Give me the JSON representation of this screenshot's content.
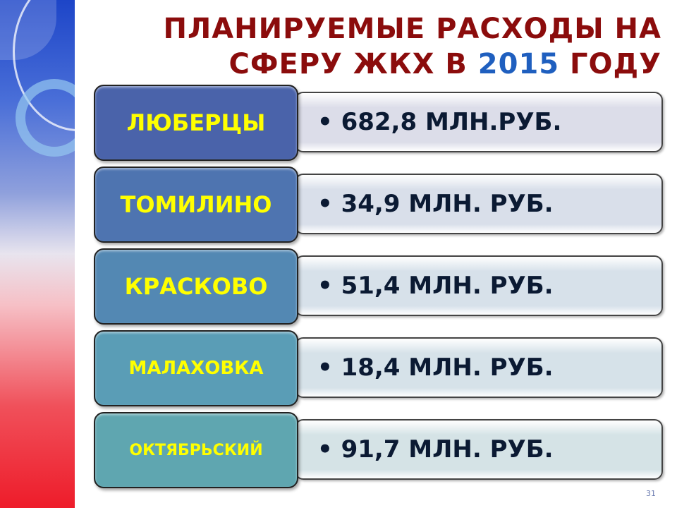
{
  "title": {
    "line1": "ПЛАНИРУЕМЫЕ РАСХОДЫ НА",
    "line2_prefix": "СФЕРУ ЖКХ В ",
    "year": "2015",
    "line2_suffix": " ГОДУ"
  },
  "rows": [
    {
      "label": "ЛЮБЕРЦЫ",
      "value": "• 682,8 МЛН.РУБ.",
      "label_color": "#4a63aa",
      "value_bg": "#dcdde9"
    },
    {
      "label": "ТОМИЛИНО",
      "value": "• 34,9 МЛН. РУБ.",
      "label_color": "#4e74b0",
      "value_bg": "#d9dfea"
    },
    {
      "label": "КРАСКОВО",
      "value": "• 51,4 МЛН. РУБ.",
      "label_color": "#5388b3",
      "value_bg": "#d7e1ea"
    },
    {
      "label": "МАЛАХОВКА",
      "value": "• 18,4 МЛН. РУБ.",
      "label_color": "#5a9db6",
      "value_bg": "#d6e2e9"
    },
    {
      "label": "ОКТЯБРЬСКИЙ",
      "value": "• 91,7 МЛН. РУБ.",
      "label_color": "#5fa6b0",
      "value_bg": "#d5e3e6"
    }
  ],
  "page_number": "31"
}
